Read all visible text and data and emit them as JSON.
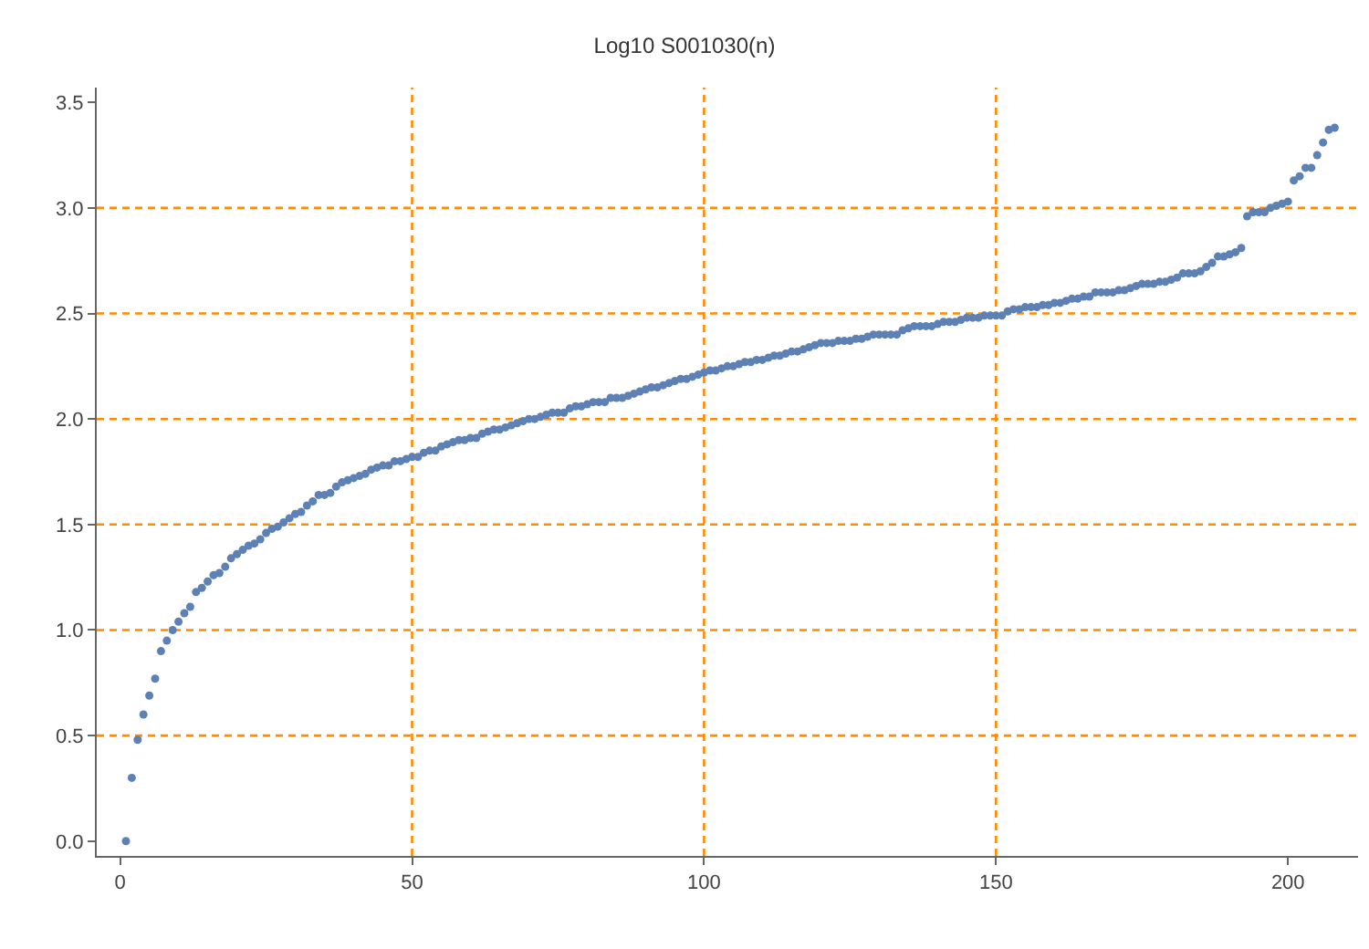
{
  "chart_data": {
    "type": "scatter",
    "title": "Log10 S001030(n)",
    "x": [
      1,
      2,
      3,
      4,
      5,
      6,
      7,
      8,
      9,
      10,
      11,
      12,
      13,
      14,
      15,
      16,
      17,
      18,
      19,
      20,
      21,
      22,
      23,
      24,
      25,
      26,
      27,
      28,
      29,
      30,
      31,
      32,
      33,
      34,
      35,
      36,
      37,
      38,
      39,
      40,
      41,
      42,
      43,
      44,
      45,
      46,
      47,
      48,
      49,
      50,
      51,
      52,
      53,
      54,
      55,
      56,
      57,
      58,
      59,
      60,
      61,
      62,
      63,
      64,
      65,
      66,
      67,
      68,
      69,
      70,
      71,
      72,
      73,
      74,
      75,
      76,
      77,
      78,
      79,
      80,
      81,
      82,
      83,
      84,
      85,
      86,
      87,
      88,
      89,
      90,
      91,
      92,
      93,
      94,
      95,
      96,
      97,
      98,
      99,
      100,
      101,
      102,
      103,
      104,
      105,
      106,
      107,
      108,
      109,
      110,
      111,
      112,
      113,
      114,
      115,
      116,
      117,
      118,
      119,
      120,
      121,
      122,
      123,
      124,
      125,
      126,
      127,
      128,
      129,
      130,
      131,
      132,
      133,
      134,
      135,
      136,
      137,
      138,
      139,
      140,
      141,
      142,
      143,
      144,
      145,
      146,
      147,
      148,
      149,
      150,
      151,
      152,
      153,
      154,
      155,
      156,
      157,
      158,
      159,
      160,
      161,
      162,
      163,
      164,
      165,
      166,
      167,
      168,
      169,
      170,
      171,
      172,
      173,
      174,
      175,
      176,
      177,
      178,
      179,
      180,
      181,
      182,
      183,
      184,
      185,
      186,
      187,
      188,
      189,
      190,
      191,
      192,
      193,
      194,
      195,
      196,
      197,
      198,
      199,
      200,
      201,
      202,
      203,
      204,
      205,
      206,
      207,
      208
    ],
    "series": [
      {
        "color": "#5e81b5",
        "values": [
          0.0,
          0.3,
          0.48,
          0.6,
          0.69,
          0.77,
          0.9,
          0.95,
          1.0,
          1.04,
          1.08,
          1.11,
          1.18,
          1.2,
          1.23,
          1.26,
          1.27,
          1.3,
          1.34,
          1.36,
          1.38,
          1.4,
          1.41,
          1.43,
          1.46,
          1.48,
          1.49,
          1.51,
          1.53,
          1.55,
          1.56,
          1.59,
          1.61,
          1.64,
          1.64,
          1.65,
          1.68,
          1.7,
          1.71,
          1.72,
          1.73,
          1.74,
          1.76,
          1.77,
          1.78,
          1.78,
          1.8,
          1.8,
          1.81,
          1.82,
          1.82,
          1.84,
          1.85,
          1.85,
          1.87,
          1.88,
          1.89,
          1.9,
          1.9,
          1.91,
          1.91,
          1.93,
          1.94,
          1.95,
          1.95,
          1.96,
          1.97,
          1.98,
          1.99,
          2.0,
          2.0,
          2.01,
          2.02,
          2.03,
          2.03,
          2.03,
          2.05,
          2.06,
          2.06,
          2.07,
          2.08,
          2.08,
          2.08,
          2.1,
          2.1,
          2.1,
          2.11,
          2.12,
          2.13,
          2.14,
          2.15,
          2.15,
          2.16,
          2.17,
          2.18,
          2.19,
          2.19,
          2.2,
          2.21,
          2.22,
          2.23,
          2.23,
          2.24,
          2.25,
          2.25,
          2.26,
          2.27,
          2.27,
          2.28,
          2.28,
          2.29,
          2.3,
          2.3,
          2.31,
          2.32,
          2.32,
          2.33,
          2.34,
          2.35,
          2.36,
          2.36,
          2.36,
          2.37,
          2.37,
          2.37,
          2.38,
          2.38,
          2.39,
          2.4,
          2.4,
          2.4,
          2.4,
          2.4,
          2.42,
          2.43,
          2.44,
          2.44,
          2.44,
          2.44,
          2.45,
          2.46,
          2.46,
          2.46,
          2.47,
          2.48,
          2.48,
          2.48,
          2.49,
          2.49,
          2.49,
          2.49,
          2.51,
          2.52,
          2.52,
          2.53,
          2.53,
          2.53,
          2.54,
          2.54,
          2.55,
          2.55,
          2.56,
          2.57,
          2.57,
          2.58,
          2.58,
          2.6,
          2.6,
          2.6,
          2.6,
          2.61,
          2.61,
          2.62,
          2.63,
          2.64,
          2.64,
          2.64,
          2.65,
          2.65,
          2.66,
          2.67,
          2.69,
          2.69,
          2.69,
          2.7,
          2.72,
          2.74,
          2.77,
          2.77,
          2.78,
          2.79,
          2.81,
          2.96,
          2.98,
          2.98,
          2.98,
          3.0,
          3.01,
          3.02,
          3.03,
          3.13,
          3.15,
          3.19,
          3.19,
          3.25,
          3.31,
          3.37,
          3.38
        ]
      }
    ],
    "xlim": [
      -4,
      212
    ],
    "xticks": [
      0,
      50,
      100,
      150,
      200
    ],
    "ylim": [
      -0.07,
      3.57
    ],
    "yticks": [
      {
        "value": 0,
        "label": "0.0"
      },
      {
        "value": 0.5,
        "label": "0.5"
      },
      {
        "value": 1,
        "label": "1.0"
      },
      {
        "value": 1.5,
        "label": "1.5"
      },
      {
        "value": 2,
        "label": "2.0"
      },
      {
        "value": 2.5,
        "label": "2.5"
      },
      {
        "value": 3,
        "label": "3.0"
      },
      {
        "value": 3.5,
        "label": "3.5"
      }
    ],
    "marker": "circle",
    "ref_lines": [
      {
        "axis": "x",
        "value": 50,
        "color": "#ff8c00",
        "line_style": "dashed"
      },
      {
        "axis": "x",
        "value": 100,
        "color": "#ff8c00",
        "line_style": "dashed"
      },
      {
        "axis": "x",
        "value": 150,
        "color": "#ff8c00",
        "line_style": "dashed"
      },
      {
        "axis": "y",
        "value": 0.5,
        "color": "#ff8c00",
        "line_style": "dashed"
      },
      {
        "axis": "y",
        "value": 1.0,
        "color": "#ff8c00",
        "line_style": "dashed"
      },
      {
        "axis": "y",
        "value": 1.5,
        "color": "#ff8c00",
        "line_style": "dashed"
      },
      {
        "axis": "y",
        "value": 2.0,
        "color": "#ff8c00",
        "line_style": "dashed"
      },
      {
        "axis": "y",
        "value": 2.5,
        "color": "#ff8c00",
        "line_style": "dashed"
      },
      {
        "axis": "y",
        "value": 3.0,
        "color": "#ff8c00",
        "line_style": "dashed"
      }
    ]
  }
}
